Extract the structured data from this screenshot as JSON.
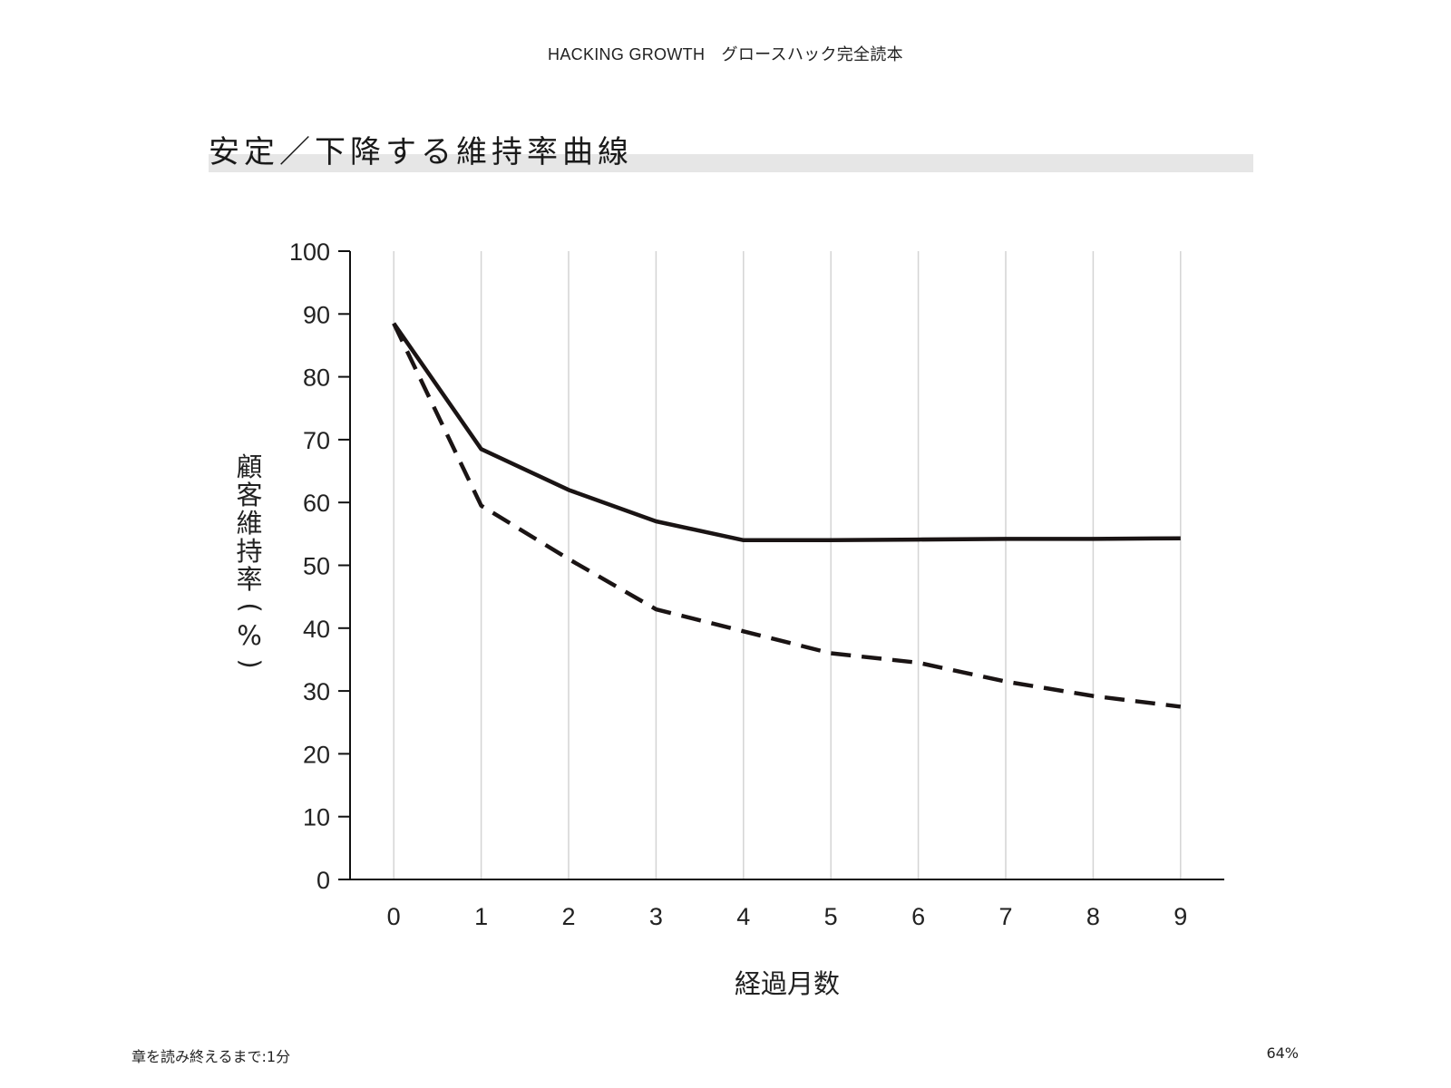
{
  "header": {
    "book_title": "HACKING GROWTH　グロースハック完全読本"
  },
  "section": {
    "title": "安定／下降する維持率曲線"
  },
  "footer": {
    "chapter_remaining": "章を読み終えるまで:1分",
    "progress": "64%"
  },
  "chart_data": {
    "type": "line",
    "title": "安定／下降する維持率曲線",
    "xlabel": "経過月数",
    "ylabel": "顧客維持率（%）",
    "x": [
      0,
      1,
      2,
      3,
      4,
      5,
      6,
      7,
      8,
      9
    ],
    "xlim": [
      -0.5,
      9.5
    ],
    "ylim": [
      0,
      100
    ],
    "yticks": [
      0,
      10,
      20,
      30,
      40,
      50,
      60,
      70,
      80,
      90,
      100
    ],
    "x_grid": true,
    "y_grid": false,
    "series": [
      {
        "style": "solid",
        "color": "#1a1414",
        "values": [
          88.5,
          68.5,
          62,
          57,
          54,
          54,
          54.1,
          54.2,
          54.2,
          54.3
        ]
      },
      {
        "style": "dashed",
        "color": "#1a1414",
        "values": [
          88.5,
          59.5,
          51,
          43,
          39.5,
          36,
          34.5,
          31.5,
          29.2,
          27.5
        ]
      }
    ]
  }
}
